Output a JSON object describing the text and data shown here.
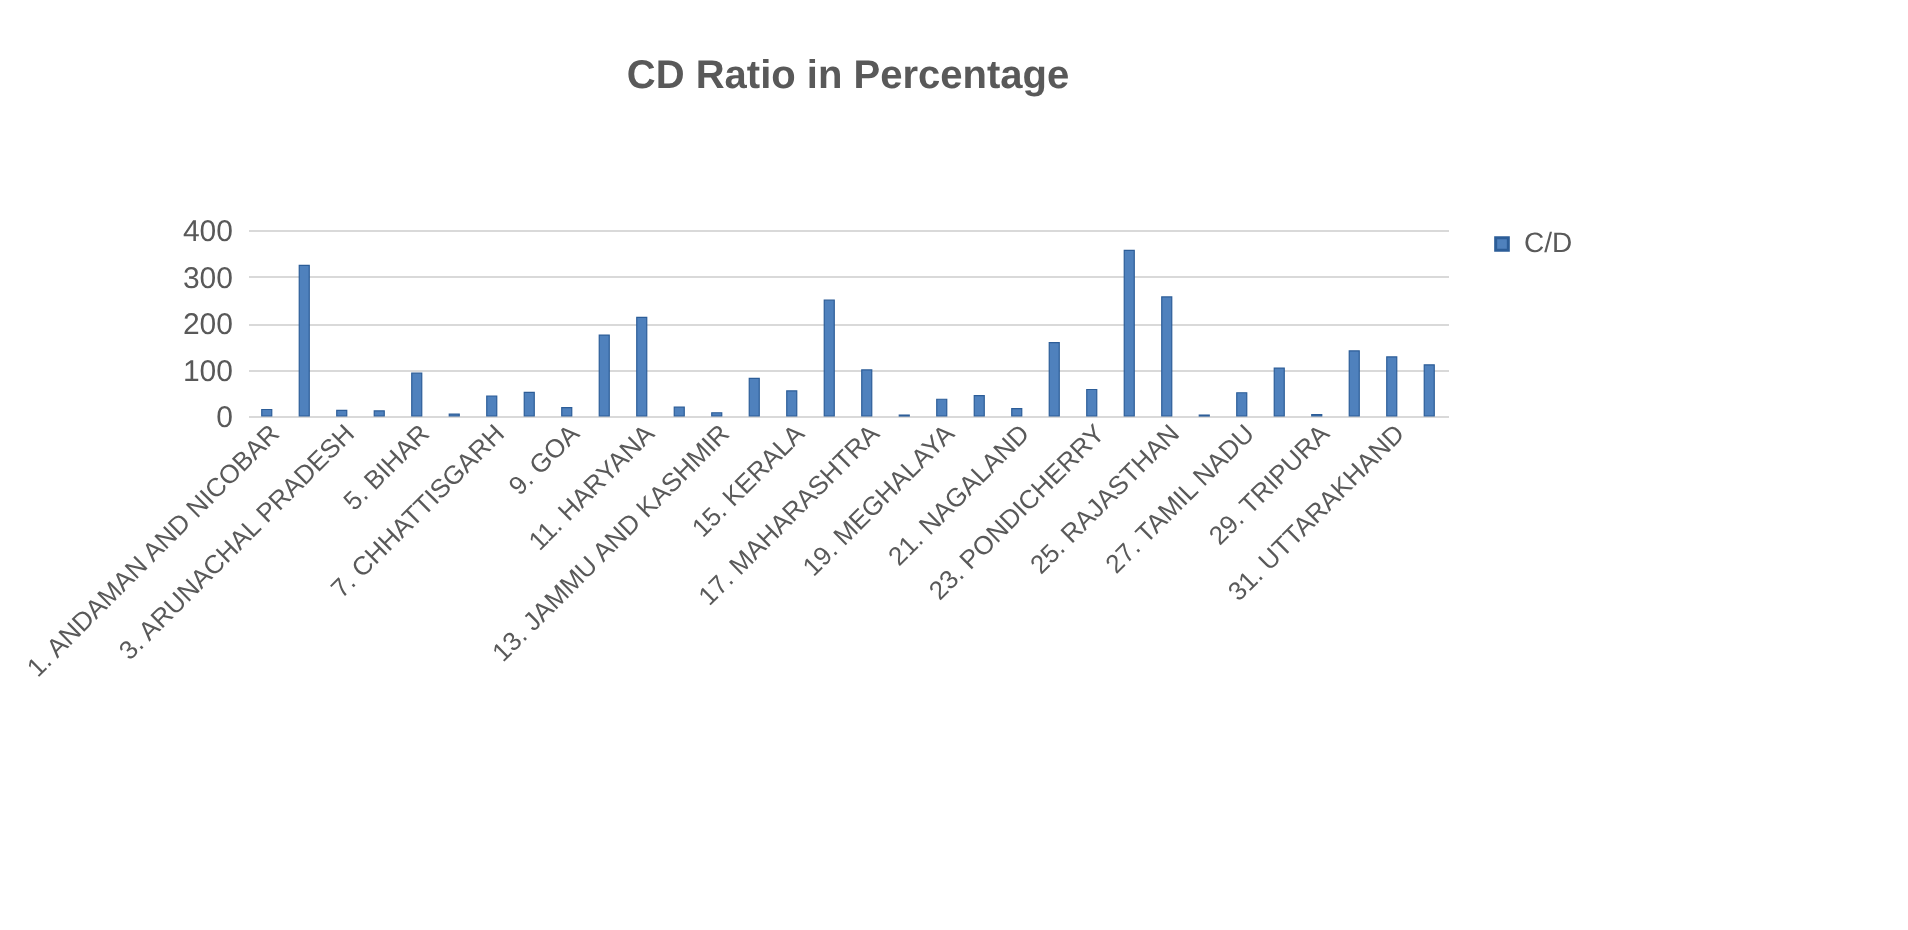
{
  "chart_data": {
    "type": "bar",
    "title": "CD Ratio in Percentage",
    "categories": [
      "1. ANDAMAN AND NICOBAR",
      null,
      "3. ARUNACHAL PRADESH",
      null,
      "5. BIHAR",
      null,
      "7. CHHATTISGARH",
      null,
      "9. GOA",
      null,
      "11. HARYANA",
      null,
      "13. JAMMU AND KASHMIR",
      null,
      "15. KERALA",
      null,
      "17. MAHARASHTRA",
      null,
      "19. MEGHALAYA",
      null,
      "21. NAGALAND",
      null,
      "23. PONDICHERRY",
      null,
      "25. RAJASTHAN",
      null,
      "27. TAMIL NADU",
      null,
      "29. TRIPURA",
      null,
      "31. UTTARAKHAND",
      null
    ],
    "series": [
      {
        "name": "C/D",
        "color": "#4f81bd",
        "values": [
          14,
          324,
          12,
          11,
          92,
          4,
          43,
          51,
          18,
          174,
          212,
          19,
          7,
          81,
          54,
          249,
          99,
          2,
          36,
          44,
          16,
          158,
          57,
          356,
          256,
          2,
          50,
          103,
          3,
          140,
          127,
          110
        ]
      }
    ],
    "ylim": [
      0,
      400
    ],
    "yticks": [
      0,
      100,
      200,
      300,
      400
    ],
    "grid": "y",
    "legend": "right"
  }
}
